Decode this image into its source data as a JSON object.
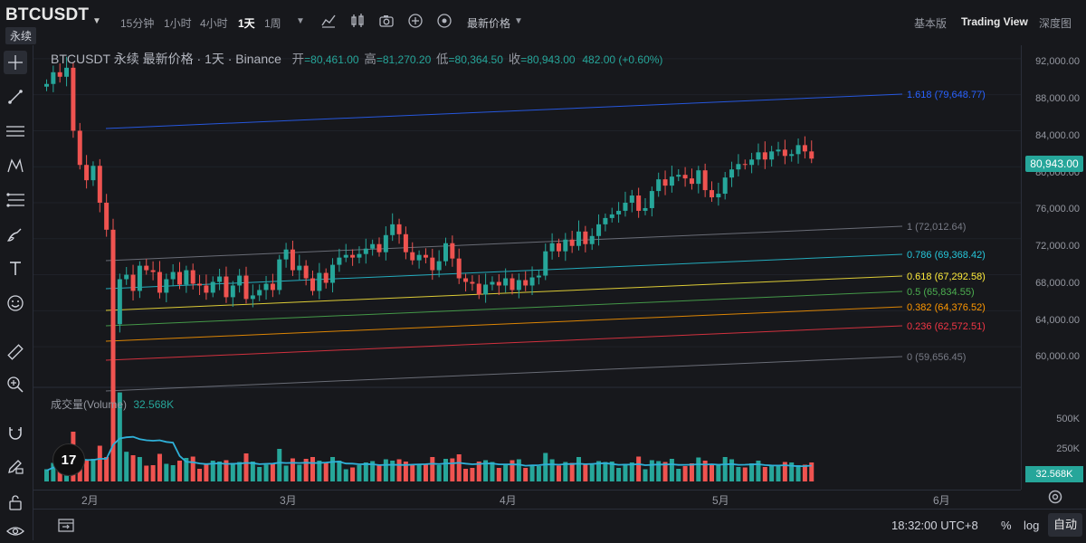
{
  "header": {
    "symbol": "BTCUSDT",
    "badge": "永续",
    "timeframes": [
      "15分钟",
      "1小时",
      "4小时",
      "1天",
      "1周"
    ],
    "active_timeframe": "1天",
    "price_type": "最新价格",
    "tabs": [
      "基本版",
      "Trading View",
      "深度图"
    ],
    "active_tab": "Trading View"
  },
  "legend": {
    "title": "BTCUSDT 永续 最新价格 · 1天 · Binance",
    "open_label": "开",
    "open": "=80,461.00",
    "high_label": "高",
    "high": "=81,270.20",
    "low_label": "低",
    "low": "=80,364.50",
    "close_label": "收",
    "close": "=80,943.00",
    "change": "482.00 (+0.60%)"
  },
  "volume_legend": {
    "name": "成交量(Volume)",
    "value": "32.568K"
  },
  "price_axis": [
    "92,000.00",
    "88,000.00",
    "84,000.00",
    "80,000.00",
    "76,000.00",
    "72,000.00",
    "68,000.00",
    "64,000.00",
    "60,000.00"
  ],
  "last_price": "80,943.00",
  "volume_axis": [
    "500K",
    "250K"
  ],
  "volume_last": "32.568K",
  "time_axis": [
    "2月",
    "3月",
    "4月",
    "5月",
    "6月"
  ],
  "fib_levels": [
    {
      "ratio": "1.618",
      "value": "(79,648.77)",
      "color": "#2962ff"
    },
    {
      "ratio": "1",
      "value": "(72,012.64)",
      "color": "#787b86"
    },
    {
      "ratio": "0.786",
      "value": "(69,368.42)",
      "color": "#26c6da"
    },
    {
      "ratio": "0.618",
      "value": "(67,292.58)",
      "color": "#ffeb3b"
    },
    {
      "ratio": "0.5",
      "value": "(65,834.55)",
      "color": "#4caf50"
    },
    {
      "ratio": "0.382",
      "value": "(64,376.52)",
      "color": "#ff9800"
    },
    {
      "ratio": "0.236",
      "value": "(62,572.51)",
      "color": "#f23645"
    },
    {
      "ratio": "0",
      "value": "(59,656.45)",
      "color": "#787b86"
    }
  ],
  "bottom": {
    "clock": "18:32:00 UTC+8",
    "percent": "%",
    "log": "log",
    "auto": "自动"
  },
  "colors": {
    "up": "#26a69a",
    "down": "#ef5350",
    "volume_ma": "#2fb0d8"
  },
  "chart_data": {
    "type": "candlestick",
    "close": [
      89200,
      90500,
      90000,
      91000,
      84000,
      80200,
      78500,
      80100,
      76000,
      73000,
      62500,
      67500,
      68000,
      66200,
      69000,
      68500,
      68300,
      66000,
      67500,
      68300,
      66900,
      68500,
      67000,
      66800,
      66000,
      67200,
      67800,
      65500,
      66800,
      67900,
      65300,
      65700,
      66300,
      67000,
      66300,
      69700,
      70800,
      68500,
      69000,
      67600,
      66200,
      68200,
      67100,
      69100,
      69900,
      70200,
      69900,
      70300,
      70900,
      71400,
      70500,
      72400,
      73600,
      72500,
      70500,
      69600,
      70200,
      69900,
      68500,
      69500,
      71500,
      69800,
      67600,
      67200,
      67000,
      65800,
      66900,
      67200,
      66800,
      67600,
      66300,
      67400,
      66800,
      67700,
      67900,
      70600,
      71500,
      70600,
      71900,
      71200,
      72800,
      71400,
      72300,
      73600,
      74300,
      74700,
      75100,
      76000,
      76800,
      75100,
      75400,
      77300,
      78600,
      77900,
      78900,
      79100,
      78700,
      78100,
      79600,
      77400,
      76600,
      77000,
      78800,
      79700,
      80300,
      80200,
      80800,
      81600,
      80800,
      81700,
      81900,
      81200,
      81400,
      82400,
      81700,
      80900
    ],
    "ylim": [
      58500,
      93500
    ],
    "fibonacci_channel": [
      {
        "ratio": 1.618,
        "value": 79648.77
      },
      {
        "ratio": 1,
        "value": 72012.64
      },
      {
        "ratio": 0.786,
        "value": 69368.42
      },
      {
        "ratio": 0.618,
        "value": 67292.58
      },
      {
        "ratio": 0.5,
        "value": 65834.55
      },
      {
        "ratio": 0.382,
        "value": 64376.52
      },
      {
        "ratio": 0.236,
        "value": 62572.51
      },
      {
        "ratio": 0,
        "value": 59656.45
      }
    ]
  }
}
